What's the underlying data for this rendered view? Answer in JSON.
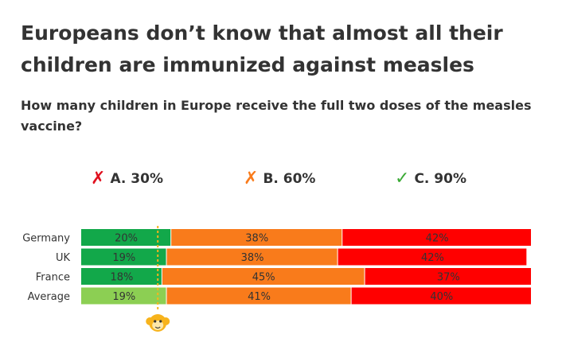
{
  "title": "Europeans don’t know that almost all their children are immunized against measles",
  "subtitle": "How many children in Europe receive the full two doses of the measles vaccine?",
  "options": [
    {
      "mark": "✗",
      "label": "A. 30%",
      "color": "#e0101e"
    },
    {
      "mark": "✗",
      "label": "B. 60%",
      "color": "#f97b1b"
    },
    {
      "mark": "✓",
      "label": "C. 90%",
      "color": "#3aaa35"
    }
  ],
  "chart_data": {
    "type": "bar",
    "stacked": true,
    "orientation": "horizontal",
    "categories": [
      "Germany",
      "UK",
      "France",
      "Average"
    ],
    "series": [
      {
        "values": [
          20,
          19,
          18,
          19
        ],
        "colors": [
          "#12a84a",
          "#12a84a",
          "#12a84a",
          "#8ccf53"
        ]
      },
      {
        "values": [
          38,
          38,
          45,
          41
        ],
        "color": "#f97b1b"
      },
      {
        "values": [
          42,
          42,
          37,
          40
        ],
        "color": "#ff0000"
      }
    ],
    "labels": [
      [
        "20%",
        "38%",
        "42%"
      ],
      [
        "19%",
        "38%",
        "42%"
      ],
      [
        "18%",
        "45%",
        "37%"
      ],
      [
        "19%",
        "41%",
        "40%"
      ]
    ],
    "xlim": [
      0,
      100
    ],
    "reference_line": {
      "value": 17,
      "color": "#f7b31c",
      "icon": "monkey-icon"
    }
  }
}
